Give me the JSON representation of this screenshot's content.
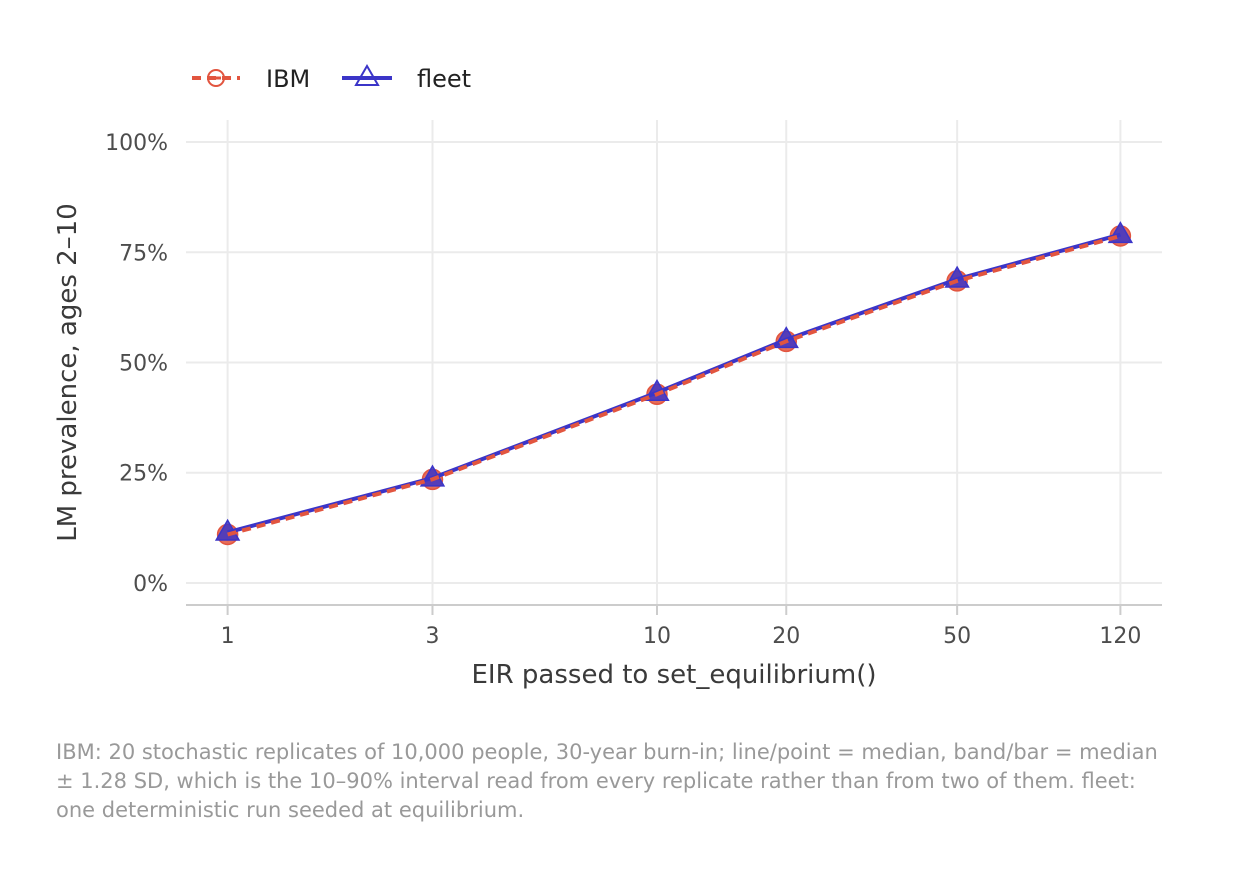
{
  "chart_data": {
    "type": "line",
    "x": [
      1,
      3,
      10,
      20,
      50,
      120
    ],
    "x_tick_labels": [
      "1",
      "3",
      "10",
      "20",
      "50",
      "120"
    ],
    "x_scale": "log",
    "xlim": [
      0.8,
      150
    ],
    "xlabel": "EIR passed to set_equilibrium()",
    "ylabel": "LM prevalence, ages 2–10",
    "ylim": [
      -0.05,
      1.05
    ],
    "y_ticks": [
      0,
      0.25,
      0.5,
      0.75,
      1.0
    ],
    "y_tick_labels": [
      "0%",
      "25%",
      "50%",
      "75%",
      "100%"
    ],
    "grid": true,
    "legend_position": "top-left",
    "series": [
      {
        "name": "IBM",
        "values": [
          0.11,
          0.235,
          0.428,
          0.548,
          0.685,
          0.787
        ],
        "color": "#e2553f",
        "line": "dashed",
        "marker": "circle"
      },
      {
        "name": "fleet",
        "values": [
          0.115,
          0.238,
          0.432,
          0.552,
          0.689,
          0.79
        ],
        "color": "#3b35c8",
        "line": "solid",
        "marker": "triangle"
      }
    ],
    "caption": "IBM: 20 stochastic replicates of 10,000 people, 30-year burn-in; line/point = median, band/bar = median ± 1.28 SD, which is the 10–90% interval read from every replicate rather than from two of them. fleet: one deterministic run seeded at equilibrium."
  }
}
